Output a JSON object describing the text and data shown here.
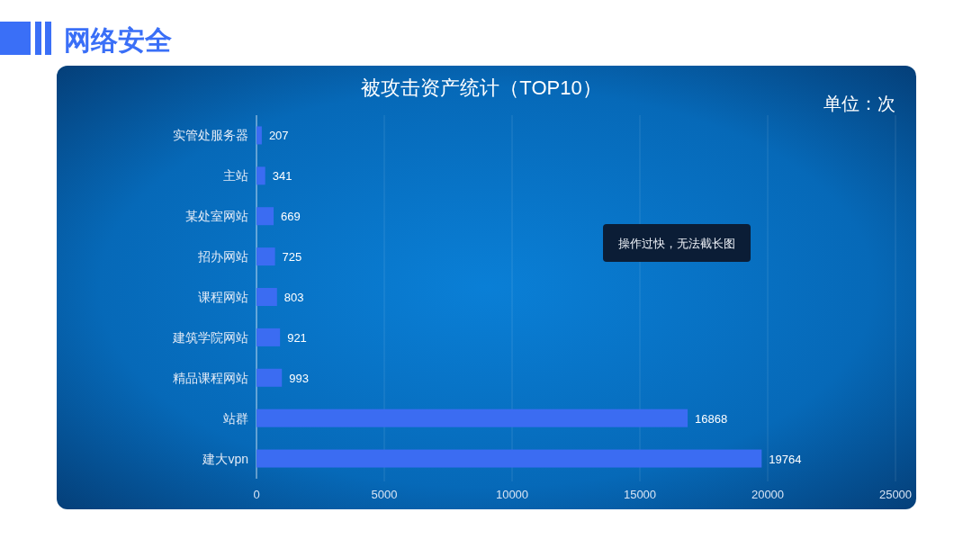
{
  "chart_data": {
    "type": "bar",
    "orientation": "horizontal",
    "title": "网络安全",
    "subtitle": "被攻击资产统计（TOP10）",
    "annotations": [
      "单位：次",
      "操作过快，无法截长图"
    ],
    "categories": [
      "实管处服务器",
      "主站",
      "某处室网站",
      "招办网站",
      "课程网站",
      "建筑学院网站",
      "精品课程网站",
      "站群",
      "建大vpn"
    ],
    "values": [
      207,
      341,
      669,
      725,
      803,
      921,
      993,
      16868,
      19764
    ],
    "color": "#3b6cf2",
    "xlim": [
      0,
      25000
    ],
    "xticks": [
      0,
      5000,
      10000,
      15000,
      20000,
      25000
    ],
    "grid": "x",
    "data_labels": true
  }
}
